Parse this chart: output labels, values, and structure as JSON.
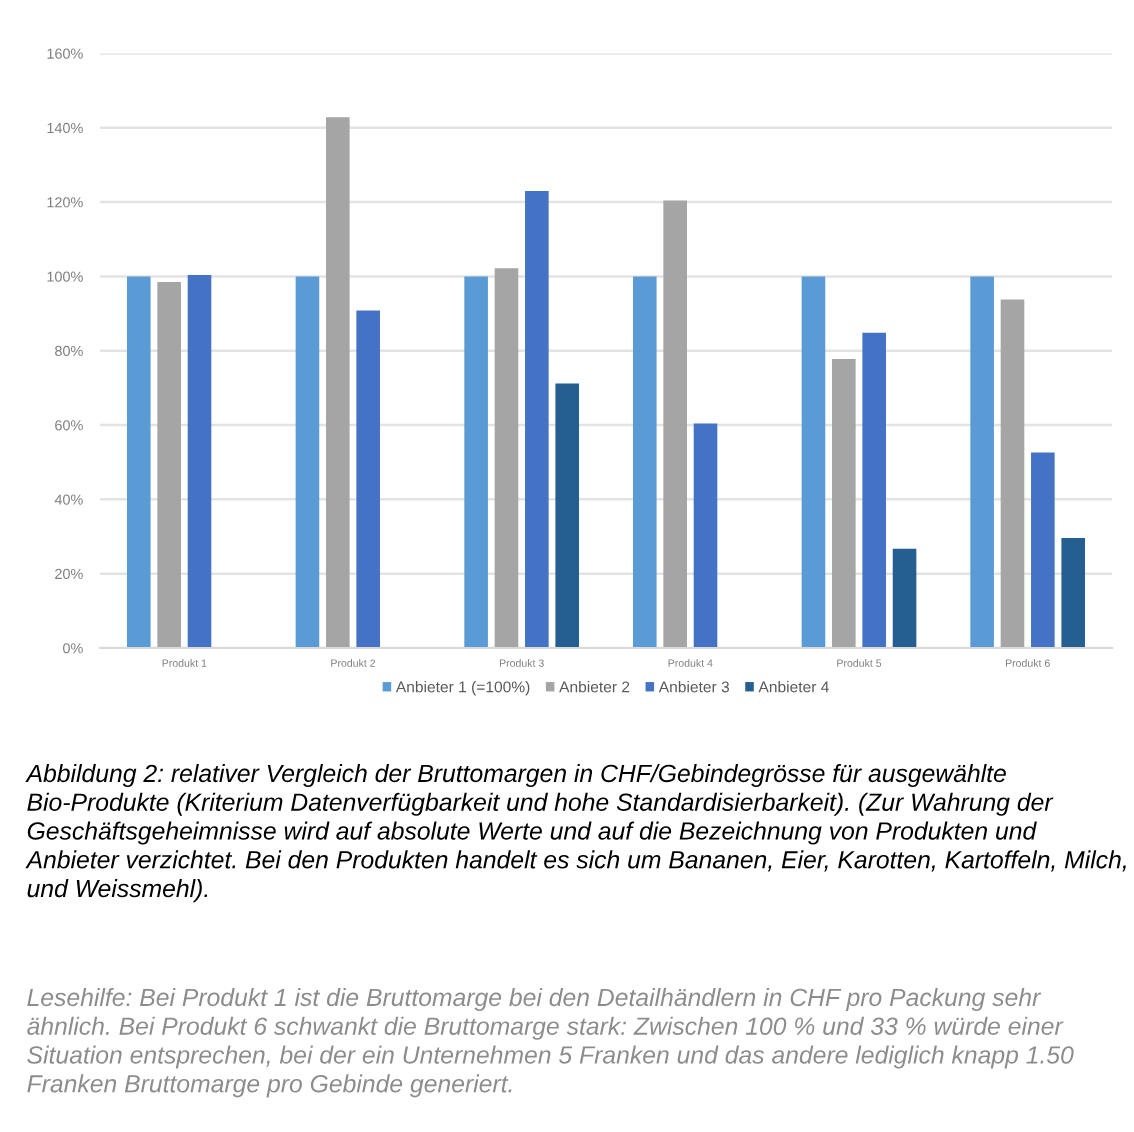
{
  "chart_data": {
    "type": "bar",
    "categories": [
      "Produkt 1",
      "Produkt 2",
      "Produkt 3",
      "Produkt 4",
      "Produkt 5",
      "Produkt 6"
    ],
    "series": [
      {
        "name": "Anbieter 1 (=100%)",
        "color": "#5b9bd5",
        "values": [
          100,
          100,
          100,
          100,
          100,
          100
        ]
      },
      {
        "name": "Anbieter 2",
        "color": "#a5a5a5",
        "values": [
          98.5,
          142.8,
          102.2,
          120.4,
          77.8,
          93.8
        ]
      },
      {
        "name": "Anbieter 3",
        "color": "#4472c4",
        "values": [
          100.4,
          90.8,
          123.0,
          60.4,
          84.8,
          52.6
        ]
      },
      {
        "name": "Anbieter 4",
        "color": "#255e91",
        "values": [
          null,
          null,
          71.2,
          null,
          26.7,
          29.6
        ]
      }
    ],
    "ylim": [
      0,
      160
    ],
    "yticks": [
      {
        "value": 0,
        "label": "0%"
      },
      {
        "value": 20,
        "label": "20%"
      },
      {
        "value": 40,
        "label": "40%"
      },
      {
        "value": 60,
        "label": "60%"
      },
      {
        "value": 80,
        "label": "80%"
      },
      {
        "value": 100,
        "label": "100%"
      },
      {
        "value": 120,
        "label": "120%"
      },
      {
        "value": 140,
        "label": "140%"
      },
      {
        "value": 160,
        "label": "160%"
      }
    ],
    "grid": "y",
    "legend": "bottom",
    "annotations": [
      "Abbildung 2: relativer Vergleich der Bruttomargen in CHF/Gebindegrösse für ausgewählte Bio-Produkte (Kriterium Datenverfügbarkeit und hohe Standardisierbarkeit). (Zur Wahrung der Geschäftsgeheimnisse wird auf absolute Werte und auf die Bezeichnung von Produkten und Anbieter verzichtet. Bei den Produkten handelt es sich um Bananen, Eier, Karotten, Kartoffeln, Milch, und Weissmehl).",
      "Lesehilfe: Bei Produkt 1 ist die Bruttomarge bei den Detailhändlern in CHF pro Packung sehr ähnlich. Bei Produkt 6 schwankt die Bruttomarge stark: Zwischen 100 % und 33 % würde einer Situation entsprechen, bei der ein Unternehmen 5 Franken und das andere lediglich knapp 1.50 Franken Bruttomarge pro Gebinde generiert."
    ]
  }
}
